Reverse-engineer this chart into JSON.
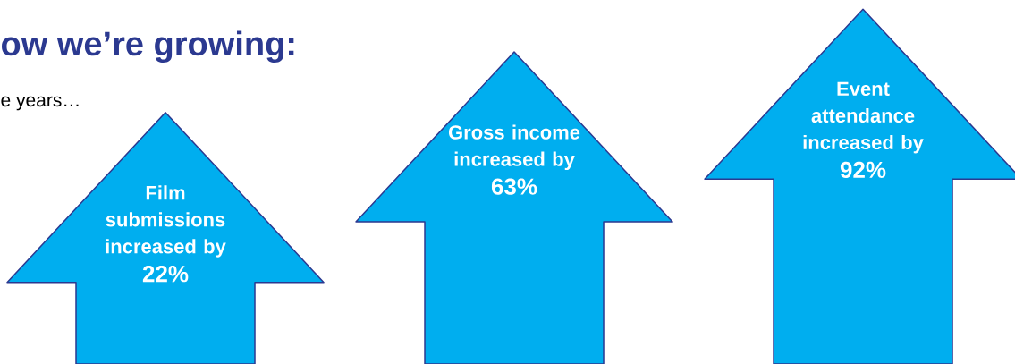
{
  "chart_data": {
    "type": "other",
    "title": "ow we’re growing:",
    "subtitle": "e years…",
    "categories": [
      "Film submissions increased by",
      "Gross income increased by",
      "Event attendance increased by"
    ],
    "values": [
      22,
      63,
      92
    ],
    "value_labels": [
      "22%",
      "63%",
      "92%"
    ],
    "colors": [
      "#00aeef",
      "#00aeef",
      "#00aeef"
    ]
  }
}
